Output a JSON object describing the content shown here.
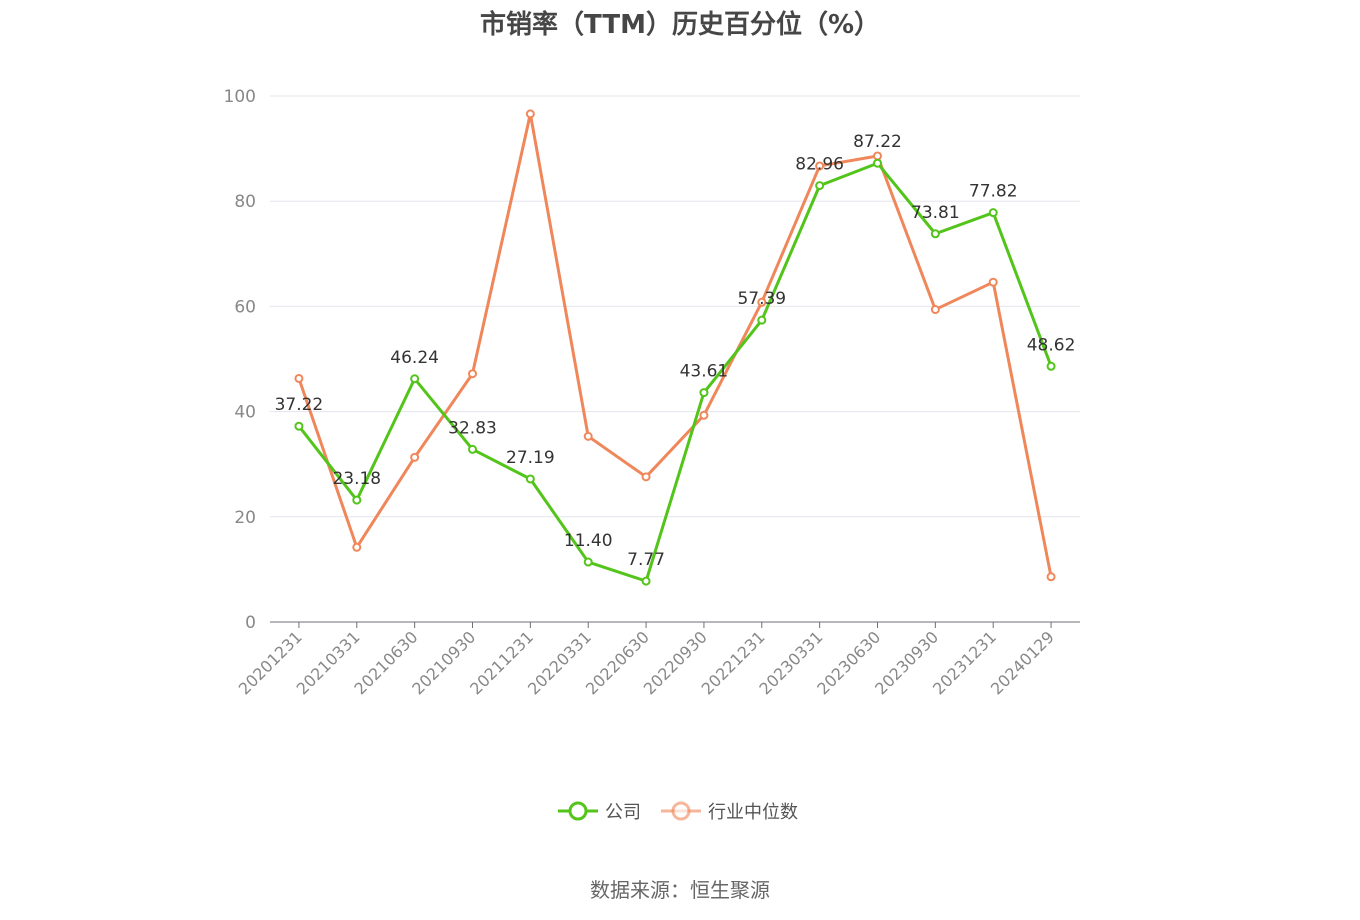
{
  "chart_data": {
    "type": "line",
    "title": "市销率（TTM）历史百分位（%）",
    "categories": [
      "20201231",
      "20210331",
      "20210630",
      "20210930",
      "20211231",
      "20220331",
      "20220630",
      "20220930",
      "20221231",
      "20230331",
      "20230630",
      "20230930",
      "20231231",
      "20240129"
    ],
    "series": [
      {
        "name": "公司",
        "color": "#52c41a",
        "values": [
          37.22,
          23.18,
          46.24,
          32.83,
          27.19,
          11.4,
          7.77,
          43.61,
          57.39,
          82.96,
          87.22,
          73.81,
          77.82,
          48.62
        ],
        "labels": [
          "37.22",
          "23.18",
          "46.24",
          "32.83",
          "27.19",
          "11.40",
          "7.77",
          "43.61",
          "57.39",
          "82.96",
          "87.22",
          "73.81",
          "77.82",
          "48.62"
        ]
      },
      {
        "name": "行业中位数",
        "color": "#f0875a",
        "values": [
          46.3,
          14.2,
          31.3,
          47.2,
          96.6,
          35.3,
          27.6,
          39.3,
          60.8,
          86.7,
          88.6,
          59.4,
          64.6,
          8.6
        ]
      }
    ],
    "ylim": [
      0,
      100
    ],
    "yticks": [
      "0",
      "20",
      "40",
      "60",
      "80",
      "100"
    ],
    "grid": true,
    "legend_position": "bottom-center"
  },
  "source_text": "数据来源：恒生聚源"
}
